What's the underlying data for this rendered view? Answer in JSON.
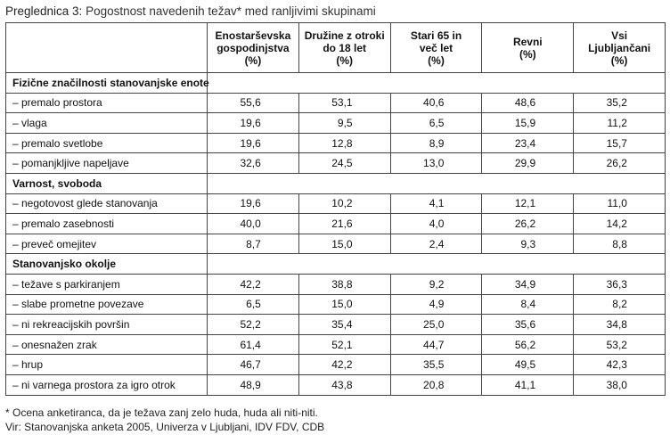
{
  "caption": {
    "label": "Preglednica 3:",
    "text": "Pogostnost navedenih težav* med ranljivimi skupinami"
  },
  "columns": [
    "Enostarševska gospodinjstva (%)",
    "Družine z otroki do 18 let (%)",
    "Stari 65 in več let (%)",
    "Revni (%)",
    "Vsi Ljubljančani (%)"
  ],
  "column_lines": [
    [
      "Enostarševska",
      "gospodinjstva",
      "(%)"
    ],
    [
      "Družine z otroki",
      "do 18 let",
      "(%)"
    ],
    [
      "Stari 65 in",
      "več let",
      "(%)"
    ],
    [
      "Revni",
      "(%)"
    ],
    [
      "Vsi",
      "Ljubljančani",
      "(%)"
    ]
  ],
  "sections": [
    {
      "title": "Fizične značilnosti stanovanjske enote",
      "rows": [
        {
          "label": "– premalo prostora",
          "values": [
            "55,6",
            "53,1",
            "40,6",
            "48,6",
            "35,2"
          ]
        },
        {
          "label": "– vlaga",
          "values": [
            "19,6",
            "9,5",
            "6,5",
            "15,9",
            "11,2"
          ]
        },
        {
          "label": "– premalo svetlobe",
          "values": [
            "19,6",
            "12,8",
            "8,9",
            "23,4",
            "15,7"
          ]
        },
        {
          "label": "– pomanjkljive napeljave",
          "values": [
            "32,6",
            "24,5",
            "13,0",
            "29,9",
            "26,2"
          ]
        }
      ]
    },
    {
      "title": "Varnost, svoboda",
      "rows": [
        {
          "label": "– negotovost glede stanovanja",
          "values": [
            "19,6",
            "10,2",
            "4,1",
            "12,1",
            "11,0"
          ]
        },
        {
          "label": "– premalo zasebnosti",
          "values": [
            "40,0",
            "21,6",
            "4,0",
            "26,2",
            "14,2"
          ]
        },
        {
          "label": "– preveč omejitev",
          "values": [
            "8,7",
            "15,0",
            "2,4",
            "9,3",
            "8,8"
          ]
        }
      ]
    },
    {
      "title": "Stanovanjsko okolje",
      "rows": [
        {
          "label": "– težave s parkiranjem",
          "values": [
            "42,2",
            "38,8",
            "9,2",
            "34,9",
            "36,3"
          ]
        },
        {
          "label": "– slabe prometne povezave",
          "values": [
            "6,5",
            "15,0",
            "4,9",
            "8,4",
            "8,2"
          ]
        },
        {
          "label": "– ni rekreacijskih površin",
          "values": [
            "52,2",
            "35,4",
            "25,0",
            "35,6",
            "34,8"
          ]
        },
        {
          "label": "– onesnažen zrak",
          "values": [
            "61,4",
            "52,1",
            "44,7",
            "56,2",
            "53,2"
          ]
        },
        {
          "label": "– hrup",
          "values": [
            "46,7",
            "42,2",
            "35,5",
            "49,5",
            "42,3"
          ]
        },
        {
          "label": "– ni varnega prostora za igro otrok",
          "values": [
            "48,9",
            "43,8",
            "20,8",
            "41,1",
            "38,0"
          ]
        }
      ]
    }
  ],
  "notes": {
    "footnote": "* Ocena anketiranca, da je težava zanj zelo huda, huda ali niti-niti.",
    "source": "Vir: Stanovanjska anketa 2005, Univerza v Ljubljani, IDV FDV, CDB"
  }
}
